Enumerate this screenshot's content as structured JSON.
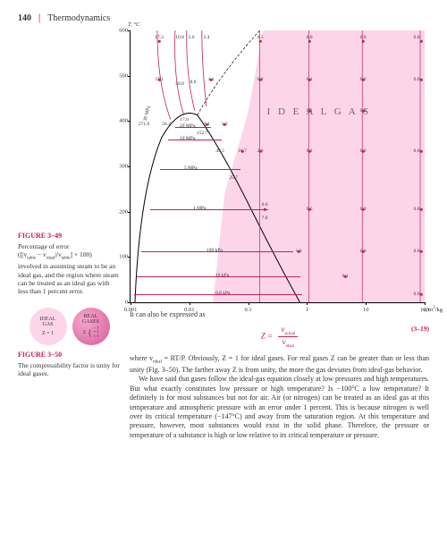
{
  "header": {
    "page_number": "140",
    "divider": "|",
    "chapter_title": "Thermodynamics"
  },
  "figure349": {
    "label": "FIGURE 3–49",
    "caption_l1": "Percentage of error",
    "caption_l2": "([|v",
    "caption_l2b": " − v",
    "caption_l2c": "|/v",
    "caption_l2d": "] × 100)",
    "caption_l3": "involved in assuming steam to be an ideal gas, and the region where steam can be treated as an ideal gas with less than 1 percent error.",
    "sub_table": "table",
    "sub_ideal": "ideal"
  },
  "chart": {
    "y_label": "T, °C",
    "x_label": "v, m³/kg",
    "y_ticks": [
      "0",
      "100",
      "200",
      "300",
      "400",
      "500",
      "600"
    ],
    "x_ticks": [
      "0.001",
      "0.01",
      "0.1",
      "1",
      "10",
      "100"
    ],
    "ideal_text": "I D E A L      G A S",
    "pressure_labels": [
      "30 MPa",
      "20 MPa",
      "10 MPa",
      "5 MPa",
      "1 MPa",
      "100 kPa",
      "10 kPa",
      "0.8 kPa"
    ],
    "data_points": {
      "row600": [
        "17.3",
        "10.8",
        "5.0",
        "2.4",
        "0.5",
        "0.0",
        "0.0",
        "0.0"
      ],
      "row500": [
        "37.1",
        "20.8",
        "8.8",
        "4.1",
        "0.8",
        "0.1",
        "0.0",
        "0.0"
      ],
      "row_ideal1": [
        "0.1",
        "0.0"
      ],
      "row400": [
        "271.0",
        "56.2",
        "17.6",
        "7.4",
        "1.3",
        "0.1",
        "0.0"
      ],
      "mid_pts": [
        "152.7",
        "49.5",
        "16.7",
        "2.6",
        "0.2",
        "0.0",
        "0.0"
      ],
      "row300": [
        "25.7"
      ],
      "row200": [
        "6.0",
        "7.6",
        "0.5",
        "0.0",
        "0.0"
      ],
      "row100": [
        "1.6",
        "0.0",
        "0.0"
      ],
      "near0": [
        "0.1",
        "0.0"
      ]
    }
  },
  "body": {
    "intro": "It can also be expressed as",
    "eq_lhs": "Z =",
    "eq_num_label": "v",
    "eq_num_sub": "actual",
    "eq_den_label": "v",
    "eq_den_sub": "ideal",
    "eq_number": "(3–19)",
    "para1_a": "where v",
    "para1_b": " = RT/P. Obviously, Z = 1 for ideal gases. For real gases Z can be greater than or less than unity (Fig. 3–50). The farther away Z is from unity, the more the gas deviates from ideal-gas behavior.",
    "para2": "We have said that gases follow the ideal-gas equation closely at low pressures and high temperatures. But what exactly constitutes low pressure or high temperature? Is −100°C a low temperature? It definitely is for most substances but not for air. Air (or nitrogen) can be treated as an ideal gas at this temperature and atmospheric pressure with an error under 1 percent. This is because nitrogen is well over its critical temperature (−147°C) and away from the saturation region. At this temperature and pressure, however, most substances would exist in the solid phase. Therefore, the pressure or temperature of a substance is high or low relative to its critical temperature or pressure.",
    "sub_ideal": "ideal"
  },
  "figure350": {
    "label": "FIGURE 3–50",
    "caption": "The compressibility factor is unity for ideal gases.",
    "circle1_l1": "IDEAL",
    "circle1_l2": "GAS",
    "circle1_l3": "Z = 1",
    "circle2_l1": "REAL",
    "circle2_l2": "GASES",
    "circle2_l3a": "Z",
    "circle2_gt": "> 1",
    "circle2_eq": "= 1",
    "circle2_lt": "< 1"
  }
}
